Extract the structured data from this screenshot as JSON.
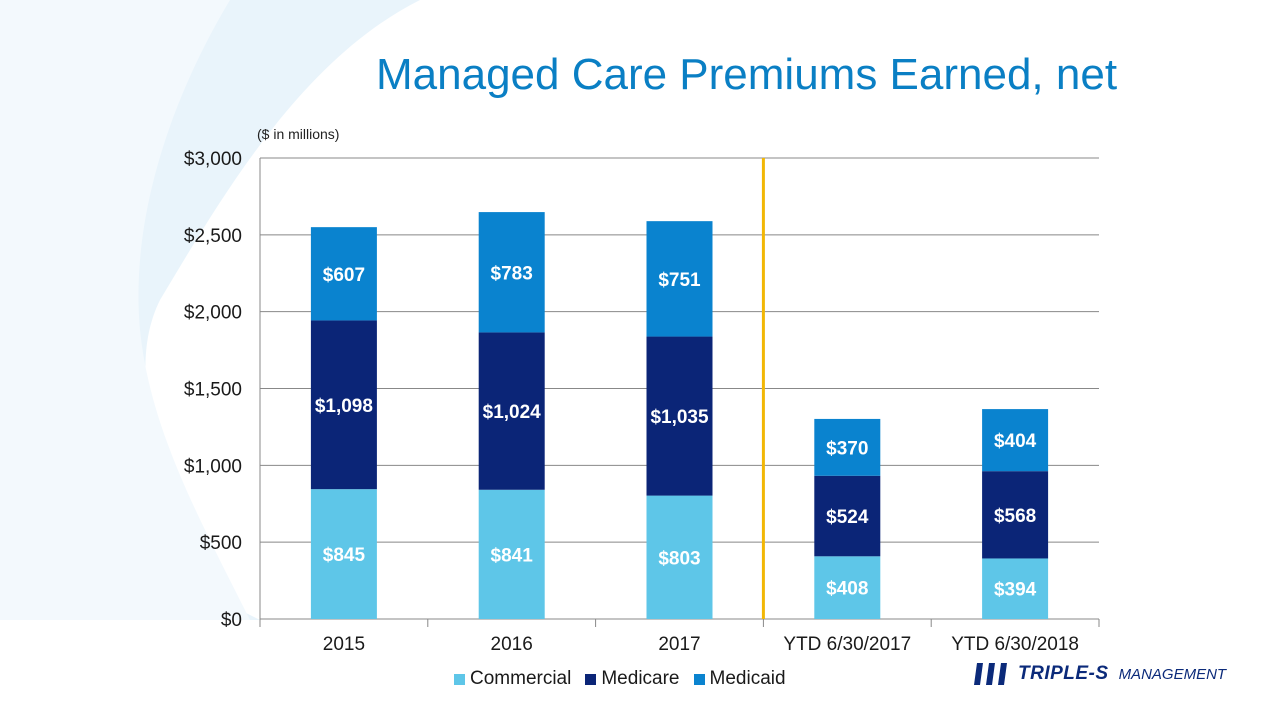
{
  "slide": {
    "title": "Managed Care Premiums Earned, net",
    "units_note": "($ in millions)"
  },
  "logo": {
    "mark": "SSS",
    "name": "TRIPLE-S",
    "suffix": "MANAGEMENT"
  },
  "colors": {
    "commercial": "#5ec6e8",
    "medicare": "#0b2577",
    "medicaid": "#0a83cf",
    "divider": "#f2b705",
    "title": "#0a7fc4",
    "axis_text": "#1a1a1a",
    "grid": "#888888"
  },
  "chart_data": {
    "type": "bar",
    "stacked": true,
    "categories": [
      "2015",
      "2016",
      "2017",
      "YTD 6/30/2017",
      "YTD 6/30/2018"
    ],
    "series": [
      {
        "name": "Commercial",
        "values": [
          845,
          841,
          803,
          408,
          394
        ],
        "labels": [
          "$845",
          "$841",
          "$803",
          "$408",
          "$394"
        ]
      },
      {
        "name": "Medicare",
        "values": [
          1098,
          1024,
          1035,
          524,
          568
        ],
        "labels": [
          "$1,098",
          "$1,024",
          "$1,035",
          "$524",
          "$568"
        ]
      },
      {
        "name": "Medicaid",
        "values": [
          607,
          783,
          751,
          370,
          404
        ],
        "labels": [
          "$607",
          "$783",
          "$751",
          "$370",
          "$404"
        ]
      }
    ],
    "yticks": [
      0,
      500,
      1000,
      1500,
      2000,
      2500,
      3000
    ],
    "ytick_labels": [
      "$0",
      "$500",
      "$1,000",
      "$1,500",
      "$2,000",
      "$2,500",
      "$3,000"
    ],
    "ylim": [
      0,
      3000
    ],
    "divider_after_category": "2017",
    "grid": true,
    "legend_position": "bottom"
  }
}
